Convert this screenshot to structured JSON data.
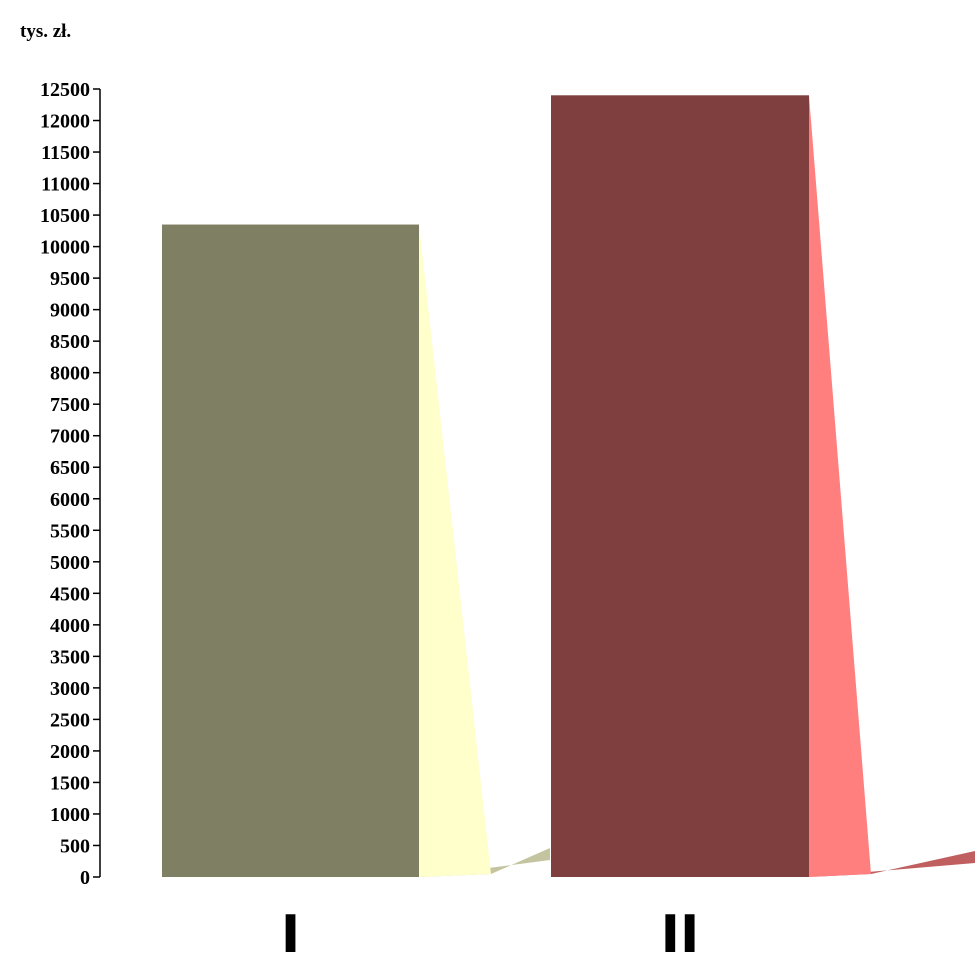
{
  "chart_data": {
    "type": "bar",
    "ylabel": "tys. zł.",
    "categories": [
      "I",
      "II"
    ],
    "values": [
      10350,
      12400
    ],
    "colors": {
      "I": {
        "front": "#7f7f64",
        "side": "#ffffcc",
        "base": "#c4c4a0"
      },
      "II": {
        "front": "#7f3f3f",
        "side": "#ff7f7f",
        "base": "#bf5f5f"
      }
    },
    "ylim": [
      0,
      12500
    ],
    "yticks": [
      "0",
      "500",
      "1000",
      "1500",
      "2000",
      "2500",
      "3000",
      "3500",
      "4000",
      "4500",
      "5000",
      "5500",
      "6000",
      "6500",
      "7000",
      "7500",
      "8000",
      "8500",
      "9000",
      "9500",
      "10000",
      "10500",
      "11000",
      "11500",
      "12000",
      "12500"
    ],
    "grid": false,
    "style": "3d-perspective"
  }
}
